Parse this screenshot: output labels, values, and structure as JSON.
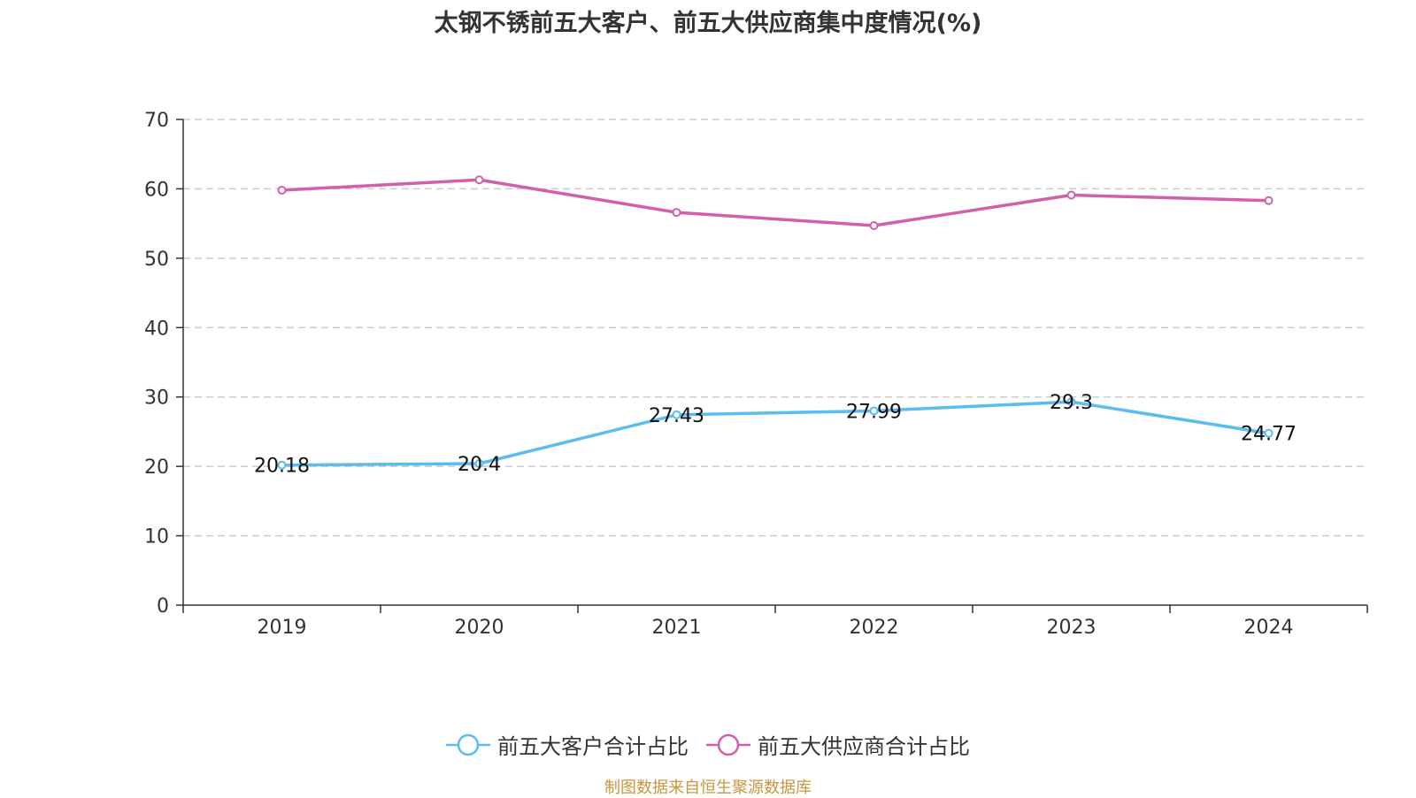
{
  "chart_data": {
    "type": "line",
    "title": "太钢不锈前五大客户、前五大供应商集中度情况(%)",
    "categories": [
      "2019",
      "2020",
      "2021",
      "2022",
      "2023",
      "2024"
    ],
    "ylim": [
      0,
      70
    ],
    "yticks": [
      "0",
      "10",
      "20",
      "30",
      "40",
      "50",
      "60",
      "70"
    ],
    "grid": true,
    "legend_position": "bottom",
    "series": [
      {
        "name": "前五大客户合计占比",
        "color": "#5bbcf0",
        "values": [
          20.18,
          20.4,
          27.43,
          27.99,
          29.3,
          24.77
        ],
        "labels": [
          "20.18",
          "20.4",
          "27.43",
          "27.99",
          "29.3",
          "24.77"
        ]
      },
      {
        "name": "前五大供应商合计占比",
        "color": "#d160a8",
        "values": [
          59.8,
          61.3,
          56.6,
          54.7,
          59.1,
          58.3
        ],
        "labels": []
      }
    ]
  },
  "source": "制图数据来自恒生聚源数据库"
}
